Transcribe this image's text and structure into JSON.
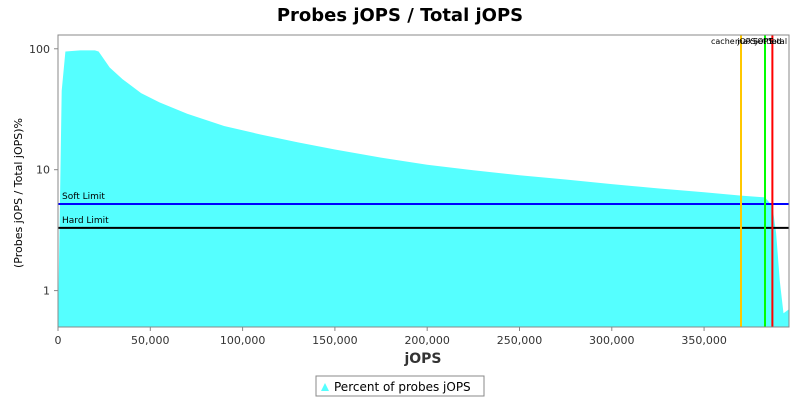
{
  "chart_data": {
    "type": "area",
    "title": "Probes jOPS / Total jOPS",
    "xlabel": "jOPS",
    "ylabel": "(Probes jOPS / Total jOPS)%",
    "xlim": [
      0,
      396000
    ],
    "ylim": [
      0.5,
      130
    ],
    "y_scale": "log",
    "grid": false,
    "legend_position": "bottom-center",
    "x_ticks": [
      0,
      50000,
      100000,
      150000,
      200000,
      250000,
      300000,
      350000
    ],
    "x_tick_labels": [
      "0",
      "50,000",
      "100,000",
      "150,000",
      "200,000",
      "250,000",
      "300,000",
      "350,000"
    ],
    "y_ticks": [
      1,
      10,
      100
    ],
    "y_tick_labels": [
      "1",
      "10",
      "100"
    ],
    "series": [
      {
        "name": "Percent of probes jOPS",
        "color": "#55FFFF",
        "x": [
          0,
          2000,
          4000,
          12000,
          20000,
          22000,
          28000,
          35000,
          45000,
          55000,
          70000,
          90000,
          110000,
          130000,
          150000,
          175000,
          200000,
          225000,
          250000,
          275000,
          300000,
          325000,
          350000,
          370000,
          383000,
          387000,
          389000,
          391000,
          393000,
          396000
        ],
        "y": [
          0.5,
          45,
          95,
          97,
          97,
          95,
          70,
          56,
          43,
          36,
          29,
          23,
          19.5,
          16.8,
          14.7,
          12.6,
          11,
          9.9,
          9,
          8.3,
          7.6,
          7,
          6.5,
          6.1,
          5.9,
          5,
          3,
          1.2,
          0.65,
          0.7
        ]
      }
    ],
    "reference_lines": {
      "horizontal": [
        {
          "label": "Soft Limit",
          "value": 5.2,
          "color": "#0000ff"
        },
        {
          "label": "Hard Limit",
          "value": 3.3,
          "color": "#000000"
        }
      ],
      "vertical": [
        {
          "value": 370000,
          "color": "#ffc800"
        },
        {
          "value": 383000,
          "color": "#00ff00"
        },
        {
          "value": 387000,
          "color": "#ff0000"
        }
      ],
      "overlapping_top_label_fragments": [
        "cache jOPS",
        "max jOPS",
        "Settled",
        "Total"
      ]
    }
  }
}
